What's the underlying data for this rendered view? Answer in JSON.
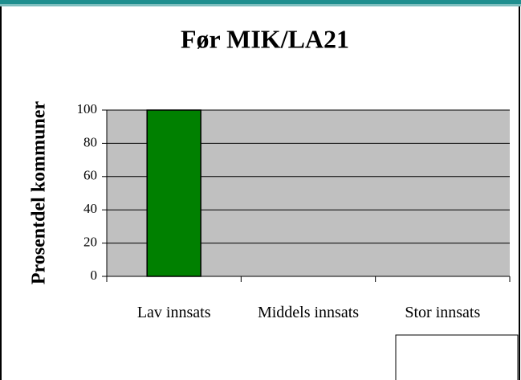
{
  "chart_data": {
    "type": "bar",
    "title": "Før MIK/LA21",
    "y_label": "Prosentdel kommuner",
    "categories": [
      "Lav innsats",
      "Middels innsats",
      "Stor innsats"
    ],
    "values": [
      100,
      0,
      0
    ],
    "color": "#008000",
    "ylim": [
      0,
      100
    ],
    "yticks": [
      0,
      20,
      40,
      60,
      80,
      100
    ],
    "grid": true
  }
}
